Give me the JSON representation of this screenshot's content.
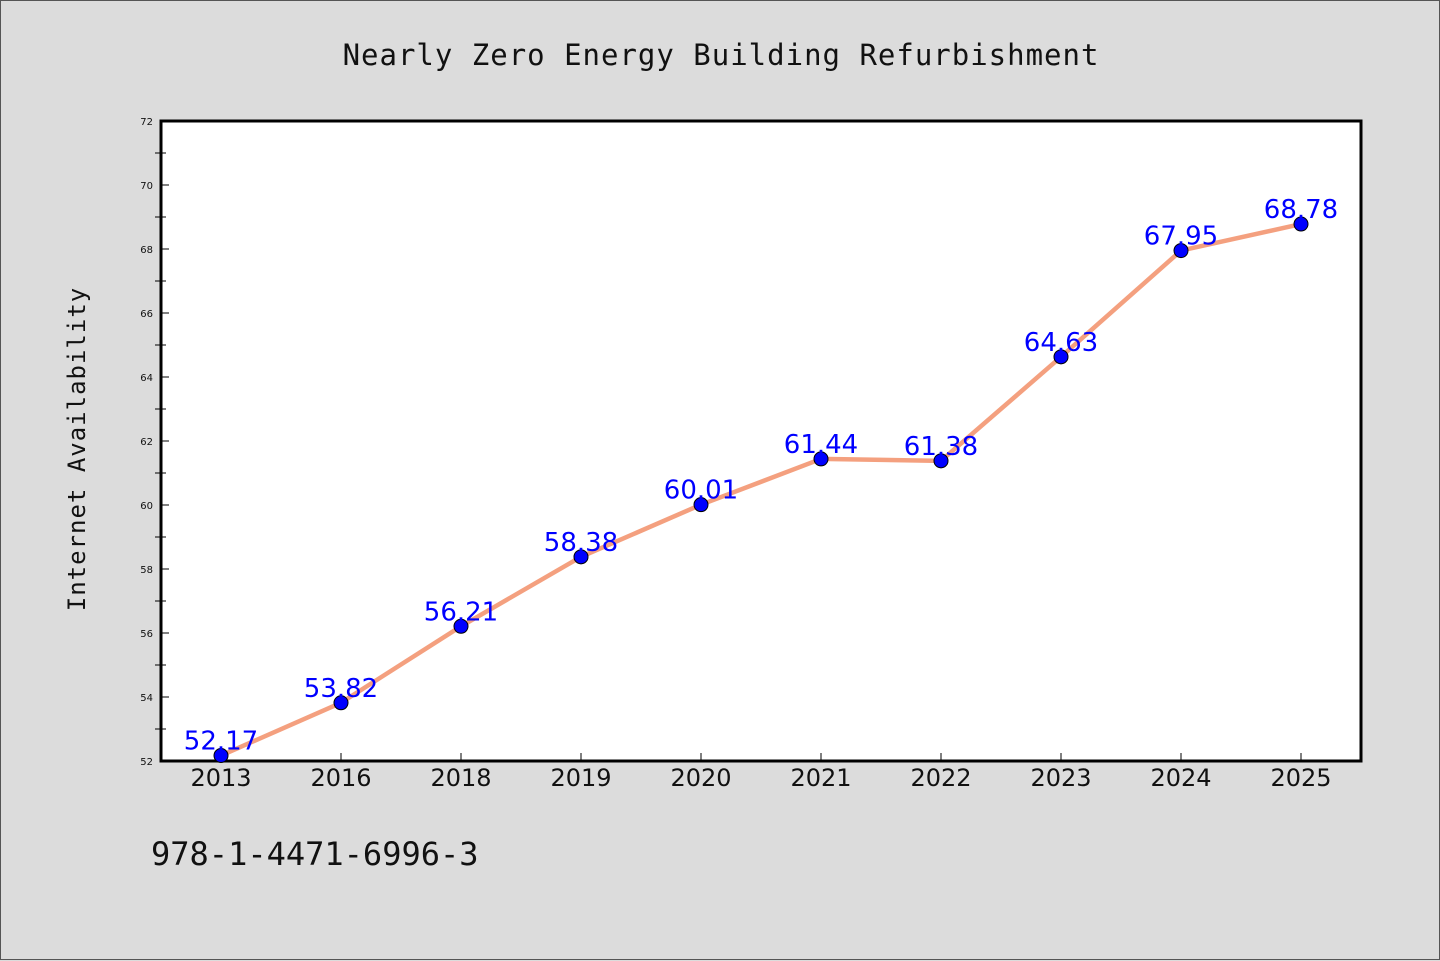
{
  "chart_data": {
    "type": "line",
    "title": "Nearly Zero Energy Building Refurbishment",
    "xlabel": "",
    "ylabel": "Internet Availability",
    "categories": [
      "2013",
      "2016",
      "2018",
      "2019",
      "2020",
      "2021",
      "2022",
      "2023",
      "2024",
      "2025"
    ],
    "series": [
      {
        "values": [
          52.17,
          53.82,
          56.21,
          58.38,
          60.01,
          61.44,
          61.38,
          64.63,
          67.95,
          68.78
        ],
        "labels": [
          "52.17",
          "53.82",
          "56.21",
          "58.38",
          "60.01",
          "61.44",
          "61.38",
          "64.63",
          "67.95",
          "68.78"
        ],
        "color": "#f4a07f",
        "marker_color": "#0000ff"
      }
    ],
    "ylim": [
      52,
      72
    ],
    "yticks": [
      "52",
      "54",
      "56",
      "58",
      "60",
      "62",
      "64",
      "66",
      "68",
      "70",
      "72"
    ],
    "grid": false,
    "legend": "none"
  },
  "footer_text": "978-1-4471-6996-3",
  "colors": {
    "background": "#dcdcdc",
    "plot_area": "#ffffff",
    "line": "#f4a07f",
    "marker": "#0000ff",
    "data_label": "#0000ff"
  }
}
